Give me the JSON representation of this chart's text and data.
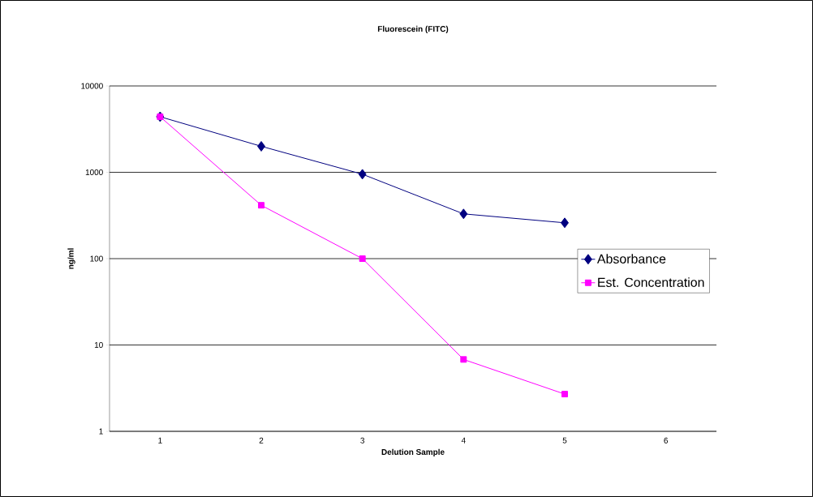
{
  "chart_data": {
    "type": "line",
    "title": "Fluorescein (FITC)",
    "xlabel": "Delution Sample",
    "ylabel": "ng/ml",
    "categories": [
      "1",
      "2",
      "3",
      "4",
      "5",
      "6"
    ],
    "series": [
      {
        "name": "Absorbance",
        "color": "#000080",
        "marker": "diamond",
        "values": [
          4400,
          2000,
          950,
          330,
          260,
          null
        ]
      },
      {
        "name": "Est. Concentration",
        "color": "#ff00ff",
        "marker": "square",
        "values": [
          4400,
          415,
          100,
          6.8,
          2.7,
          null
        ]
      }
    ],
    "log": "y",
    "ylim": [
      1,
      10000
    ],
    "yticks": [
      1,
      10,
      100,
      1000,
      10000
    ],
    "grid": "y",
    "legend": "right",
    "line_style": "solid"
  }
}
